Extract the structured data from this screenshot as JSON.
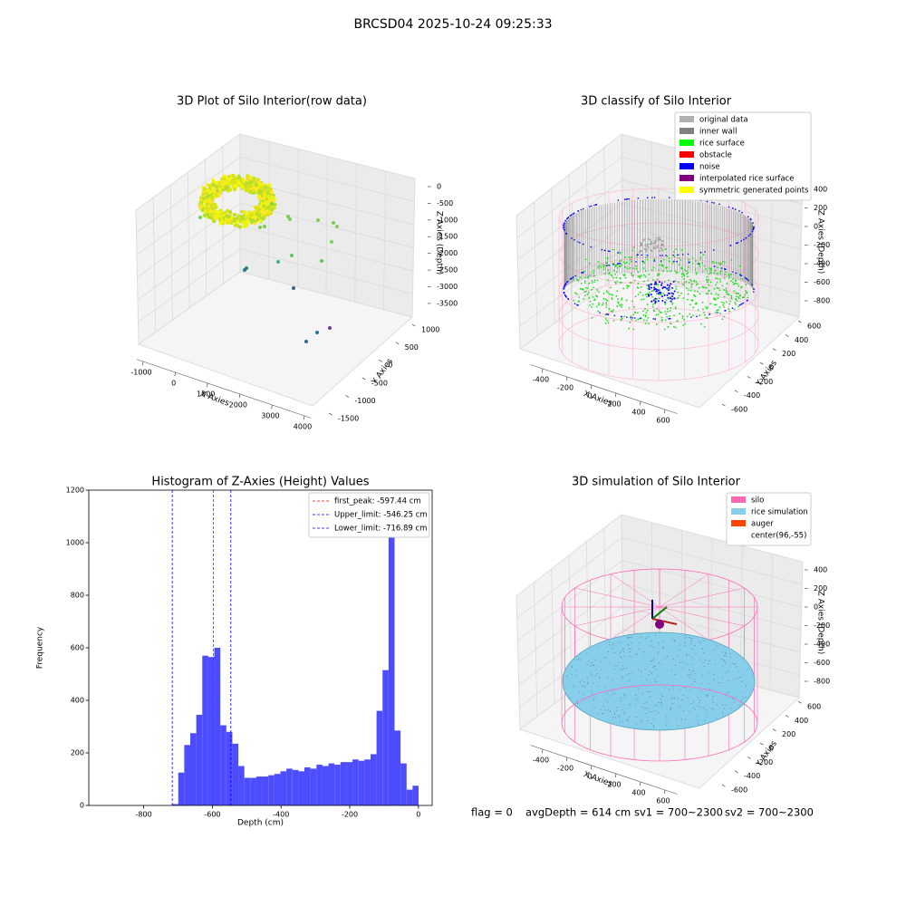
{
  "suptitle": "BRCSD04 2025-10-24 09:25:33",
  "chart_data": [
    {
      "type": "scatter3d",
      "title": "3D Plot of Silo Interior(row data)",
      "xlabel": "X Axies",
      "ylabel": "Y Axies",
      "zlabel": "Z Axies (Depth)",
      "xlim": [
        -1200,
        4200
      ],
      "xticks": [
        -1000,
        0,
        1000,
        2000,
        3000,
        4000
      ],
      "ylim": [
        -1700,
        1200
      ],
      "yticks": [
        -1500,
        -1000,
        -500,
        0,
        500,
        1000
      ],
      "zlim": [
        -3800,
        200
      ],
      "zticks": [
        -3500,
        -3000,
        -2500,
        -2000,
        -1500,
        -1000,
        -500,
        0
      ]
    },
    {
      "type": "scatter3d",
      "title": "3D classify of Silo Interior",
      "xlabel": "X Axies",
      "ylabel": "Y Axies",
      "zlabel": "Z Axies (Depth)",
      "xlim": [
        -500,
        700
      ],
      "xticks": [
        -400,
        -200,
        0,
        200,
        400,
        600
      ],
      "ylim": [
        -700,
        700
      ],
      "yticks": [
        -600,
        -400,
        -200,
        0,
        200,
        400,
        600
      ],
      "zlim": [
        -900,
        500
      ],
      "zticks": [
        -800,
        -600,
        -400,
        -200,
        0,
        200,
        400
      ],
      "legend_loc": "upper right",
      "legend": [
        {
          "name": "original data",
          "color": "#b0b0b0"
        },
        {
          "name": "inner wall",
          "color": "#808080"
        },
        {
          "name": "rice surface",
          "color": "#00ff00"
        },
        {
          "name": "obstacle",
          "color": "#ff0000"
        },
        {
          "name": "noise",
          "color": "#0000ff"
        },
        {
          "name": "interpolated rice surface",
          "color": "#800080"
        },
        {
          "name": "symmetric generated points",
          "color": "#ffff00"
        }
      ]
    },
    {
      "type": "histogram",
      "title": "Histogram of Z-Axies (Height) Values",
      "xlabel": "Depth (cm)",
      "ylabel": "Frequency",
      "color": "#4d4dff",
      "bins": [
        -717,
        -699.5,
        -682,
        -664.5,
        -647,
        -629.5,
        -612,
        -594.5,
        -577,
        -559.5,
        -542,
        -524.5,
        -507,
        -489.5,
        -472,
        -454.5,
        -437,
        -419.5,
        -402,
        -384.5,
        -367,
        -349.5,
        -332,
        -314.5,
        -297,
        -279.5,
        -262,
        -244.5,
        -227,
        -209.5,
        -192,
        -174.5,
        -157,
        -139.5,
        -122,
        -104.5,
        -87,
        -69.5,
        -52,
        -34.5,
        -17,
        0.5
      ],
      "counts": [
        5,
        125,
        230,
        275,
        345,
        570,
        565,
        600,
        305,
        280,
        235,
        150,
        105,
        105,
        110,
        110,
        115,
        120,
        130,
        140,
        135,
        130,
        145,
        140,
        155,
        150,
        160,
        155,
        165,
        165,
        175,
        170,
        175,
        195,
        360,
        515,
        1135,
        285,
        160,
        60,
        75
      ],
      "xlim": [
        -960,
        40
      ],
      "xticks": [
        -800,
        -600,
        -400,
        -200,
        0
      ],
      "ylim": [
        0,
        1200
      ],
      "yticks": [
        0,
        200,
        400,
        600,
        800,
        1000,
        1200
      ],
      "legend_loc": "upper right",
      "vlines": [
        {
          "name": "first_peak: -597.44 cm",
          "color": "#ff0000",
          "value": -597.44
        },
        {
          "name": "Upper_limit: -546.25 cm",
          "color": "#0000ff",
          "value": -546.25
        },
        {
          "name": "Lower_limit: -716.89 cm",
          "color": "#0000ff",
          "value": -716.89
        }
      ]
    },
    {
      "type": "surface3d",
      "title": "3D simulation of Silo Interior",
      "xlabel": "X Axies",
      "ylabel": "Y Axies",
      "zlabel": "Z Axies (Depth)",
      "xlim": [
        -500,
        700
      ],
      "xticks": [
        -400,
        -200,
        0,
        200,
        400,
        600
      ],
      "ylim": [
        -700,
        700
      ],
      "yticks": [
        -600,
        -400,
        -200,
        0,
        200,
        400,
        600
      ],
      "zlim": [
        -900,
        500
      ],
      "zticks": [
        -800,
        -600,
        -400,
        -200,
        0,
        200,
        400
      ],
      "legend_loc": "upper right",
      "legend": [
        {
          "name": "silo",
          "color": "#ff69b4"
        },
        {
          "name": "rice simulation",
          "color": "#87ceeb"
        },
        {
          "name": "auger",
          "color": "#ff4500"
        },
        {
          "name": "center(96,-55)",
          "color": "#ffffff"
        }
      ],
      "annotations": [
        "flag = 0",
        "avgDepth = 614 cm",
        "sv1 = 700~2300",
        "sv2 = 700~2300"
      ]
    }
  ]
}
